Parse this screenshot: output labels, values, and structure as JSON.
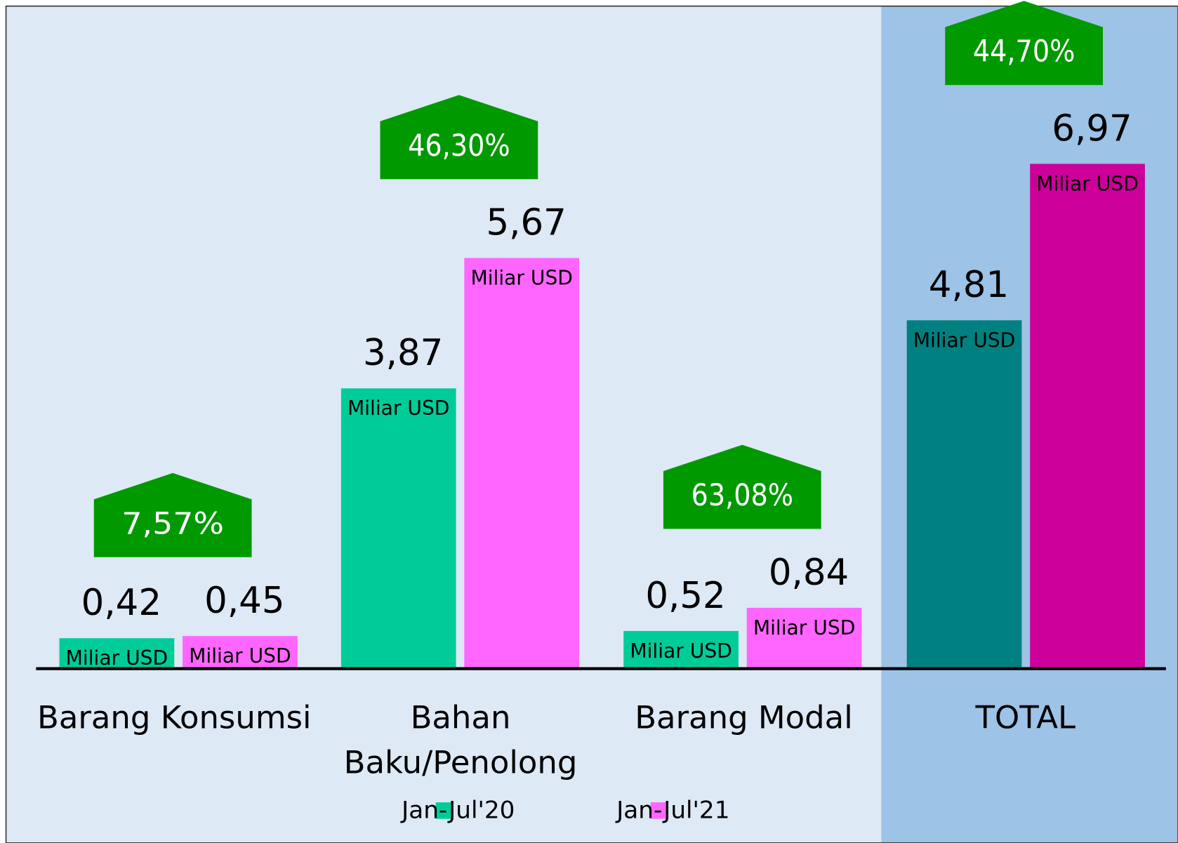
{
  "chart_data": {
    "type": "bar",
    "categories": [
      "Barang Konsumsi",
      [
        "Bahan",
        "Baku/Penolong"
      ],
      "Barang Modal",
      "TOTAL"
    ],
    "series": [
      {
        "name": "Jan-Jul'20",
        "color": "#00cc99",
        "colors": [
          "#00cc99",
          "#00cc99",
          "#00cc99",
          "#008080"
        ],
        "values": [
          0.42,
          3.87,
          0.52,
          4.81
        ],
        "value_labels": [
          "0,42",
          "3,87",
          "0,52",
          "4,81"
        ]
      },
      {
        "name": "Jan-Jul'21",
        "color": "#ff66ff",
        "colors": [
          "#ff66ff",
          "#ff66ff",
          "#ff66ff",
          "#cc0099"
        ],
        "values": [
          0.45,
          5.67,
          0.84,
          6.97
        ],
        "value_labels": [
          "0,45",
          "5,67",
          "0,84",
          "6,97"
        ]
      }
    ],
    "unit_label": "Miliar USD",
    "annotations": [
      "7,57%",
      "46,30%",
      "63,08%",
      "44,70%"
    ],
    "annotation_color": "#009900",
    "ylim": [
      0,
      9.2
    ]
  }
}
